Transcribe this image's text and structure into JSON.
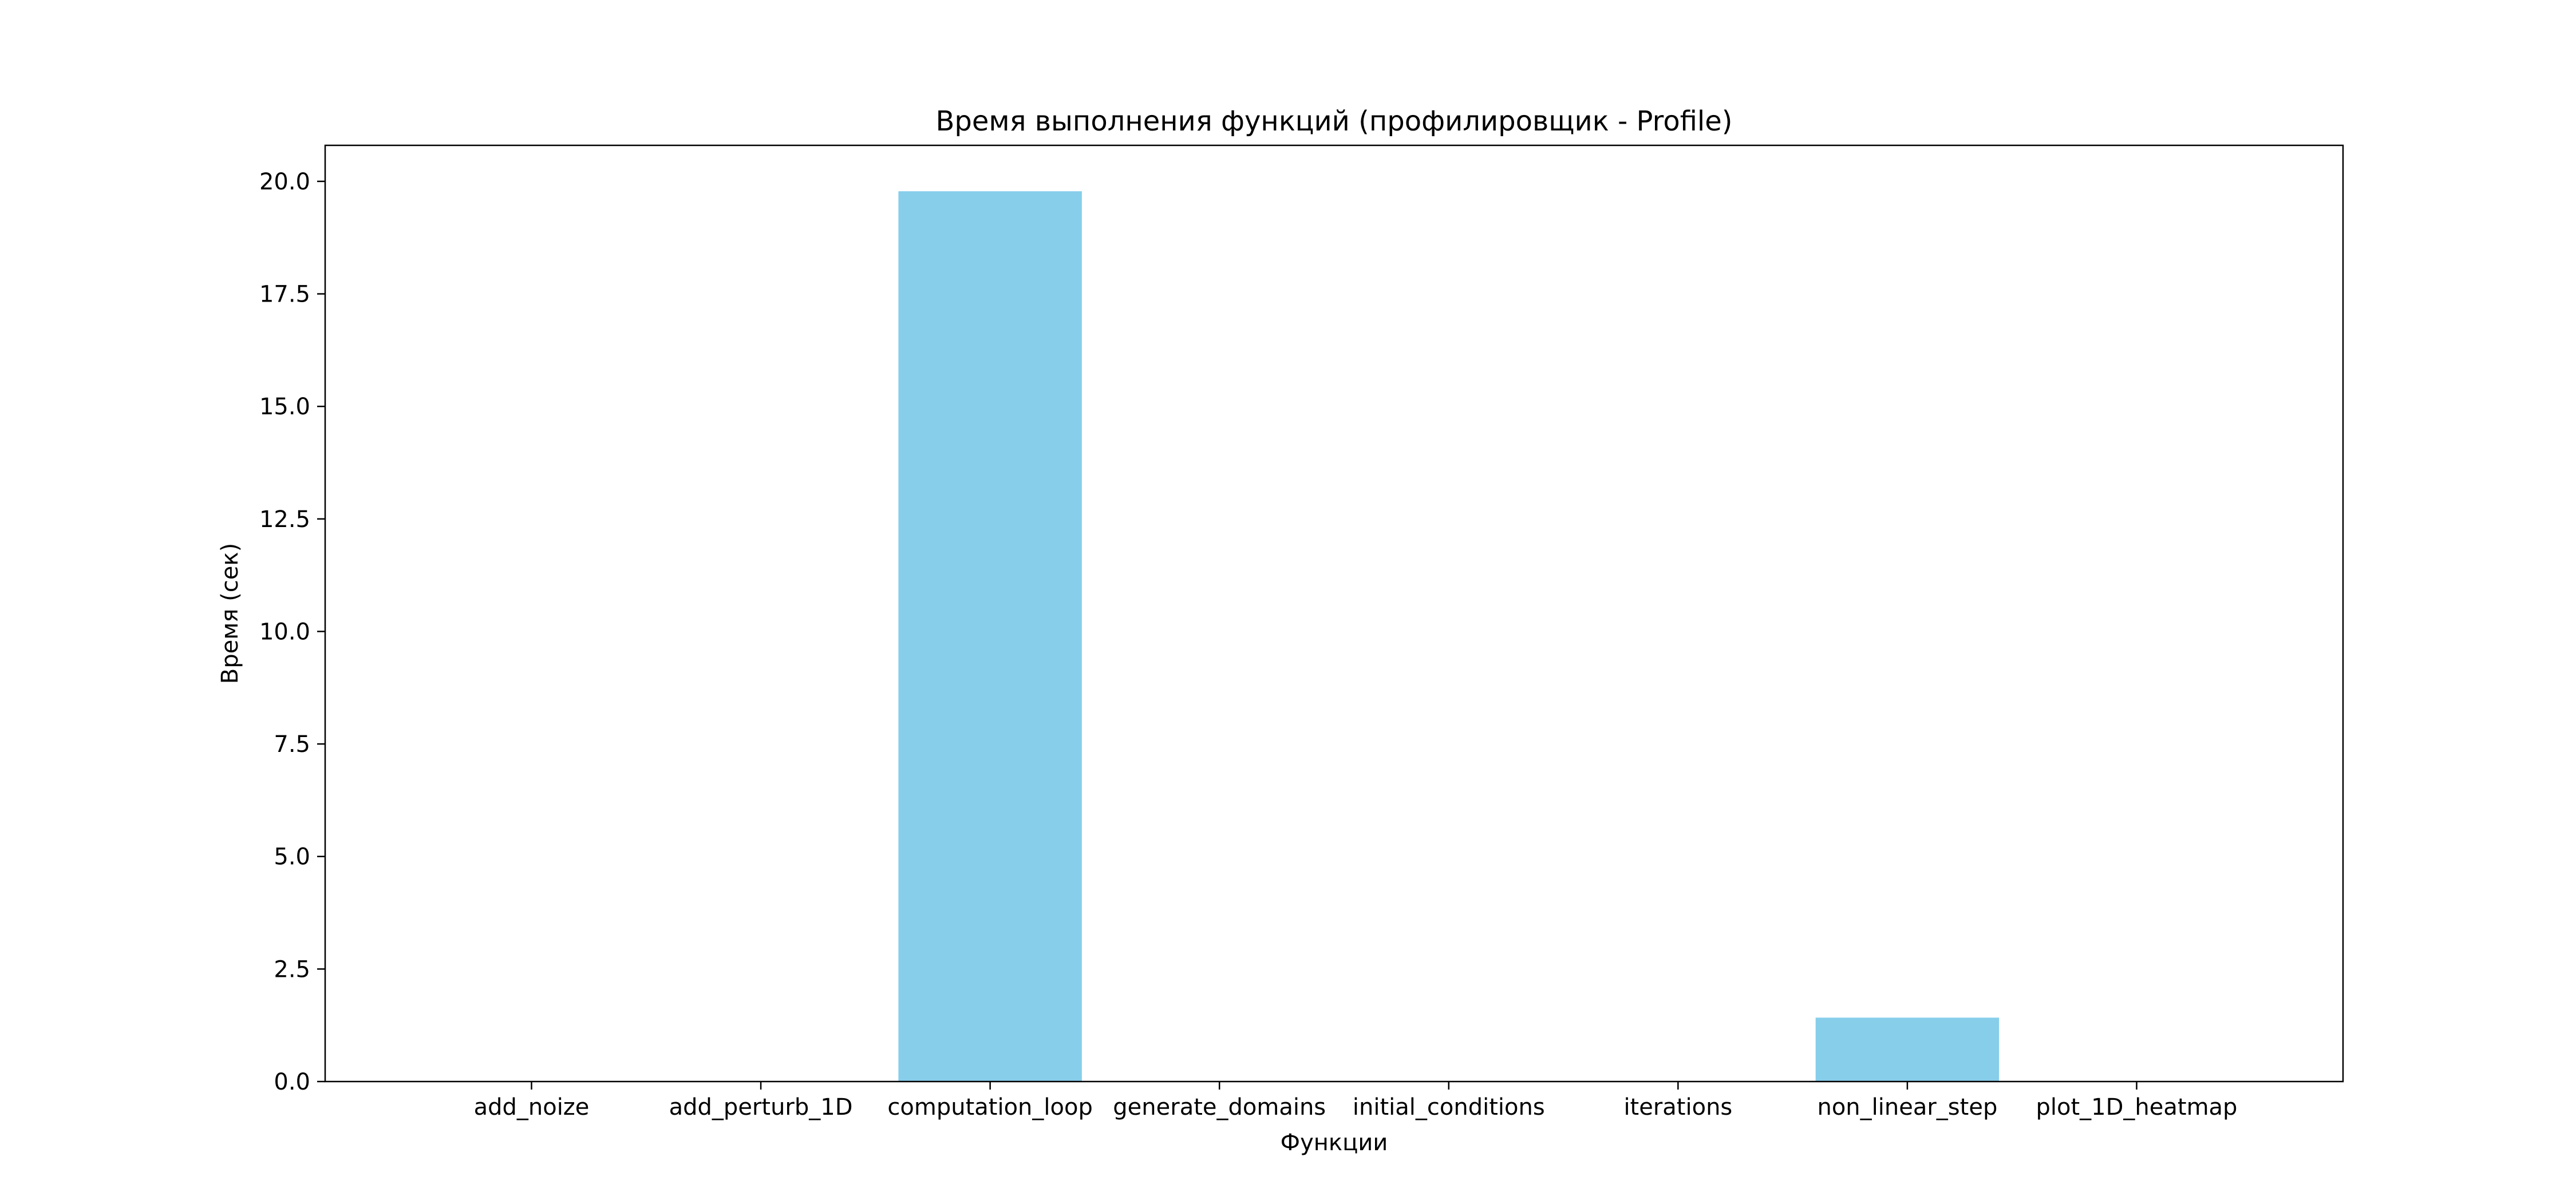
{
  "chart_data": {
    "type": "bar",
    "title": "Время выполнения функций (профилировщик - Profile)",
    "xlabel": "Функции",
    "ylabel": "Время (сек)",
    "categories": [
      "add_noize",
      "add_perturb_1D",
      "computation_loop",
      "generate_domains",
      "initial_conditions",
      "iterations",
      "non_linear_step",
      "plot_1D_heatmap"
    ],
    "values": [
      0.0,
      0.0,
      19.78,
      0.0,
      0.0,
      0.0,
      1.42,
      0.0
    ],
    "ylim": [
      0,
      20.8
    ],
    "yticks": [
      0.0,
      2.5,
      5.0,
      7.5,
      10.0,
      12.5,
      15.0,
      17.5,
      20.0
    ],
    "ytick_labels": [
      "0.0",
      "2.5",
      "5.0",
      "7.5",
      "10.0",
      "12.5",
      "15.0",
      "17.5",
      "20.0"
    ],
    "bar_color": "#87CEEB",
    "grid": false,
    "legend": false
  }
}
